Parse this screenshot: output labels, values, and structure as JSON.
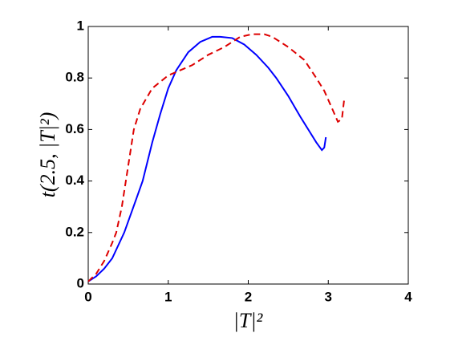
{
  "chart_data": {
    "type": "line",
    "xlabel": "|T|²",
    "ylabel": "t(2.5, |T|²)",
    "xlim": [
      0,
      4
    ],
    "ylim": [
      0,
      1
    ],
    "xticks": [
      0,
      1,
      2,
      3,
      4
    ],
    "yticks": [
      0,
      0.2,
      0.4,
      0.6,
      0.8,
      1
    ],
    "grid": false,
    "series": [
      {
        "color": "#0000ff",
        "dash": false,
        "x": [
          0,
          0.1,
          0.2,
          0.3,
          0.45,
          0.6,
          0.68,
          0.8,
          0.9,
          1.0,
          1.1,
          1.25,
          1.4,
          1.55,
          1.65,
          1.8,
          1.95,
          2.1,
          2.25,
          2.35,
          2.5,
          2.65,
          2.75,
          2.85,
          2.92,
          2.95,
          2.97
        ],
        "values": [
          0.01,
          0.03,
          0.06,
          0.1,
          0.2,
          0.33,
          0.4,
          0.55,
          0.66,
          0.76,
          0.83,
          0.9,
          0.94,
          0.96,
          0.96,
          0.955,
          0.93,
          0.89,
          0.84,
          0.8,
          0.73,
          0.65,
          0.6,
          0.55,
          0.52,
          0.53,
          0.57
        ]
      },
      {
        "color": "#dd0000",
        "dash": true,
        "x": [
          0,
          0.1,
          0.2,
          0.3,
          0.35,
          0.42,
          0.47,
          0.52,
          0.57,
          0.65,
          0.8,
          1.0,
          1.15,
          1.3,
          1.5,
          1.7,
          1.9,
          2.05,
          2.2,
          2.3,
          2.5,
          2.7,
          2.85,
          2.95,
          3.05,
          3.12,
          3.17,
          3.2
        ],
        "values": [
          0.01,
          0.04,
          0.09,
          0.16,
          0.2,
          0.3,
          0.4,
          0.5,
          0.6,
          0.68,
          0.76,
          0.81,
          0.83,
          0.85,
          0.89,
          0.92,
          0.96,
          0.97,
          0.97,
          0.96,
          0.92,
          0.87,
          0.8,
          0.75,
          0.68,
          0.63,
          0.64,
          0.72
        ]
      }
    ]
  }
}
